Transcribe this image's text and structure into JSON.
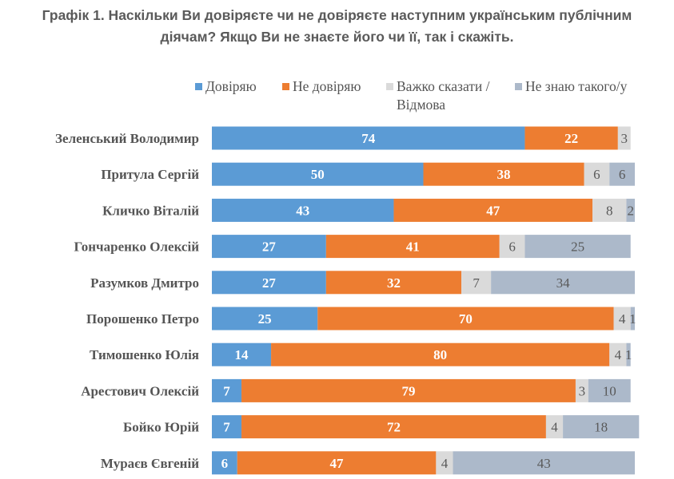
{
  "title_line1": "Графік 1. Наскільки Ви довіряєте чи не довіряєте наступним українським публічним",
  "title_line2": "діячам? Якщо Ви не знаєте його чи її, так і скажіть.",
  "chart_data": {
    "type": "bar",
    "orientation": "horizontal",
    "stacked": true,
    "title": "Графік 1. Наскільки Ви довіряєте чи не довіряєте наступним українським публічним діячам? Якщо Ви не знаєте його чи її, так і скажіть.",
    "xlabel": "",
    "ylabel": "",
    "xlim": [
      0,
      100
    ],
    "grid": false,
    "legend_position": "top",
    "categories": [
      "Зеленський Володимир",
      "Притула Сергій",
      "Кличко Віталій",
      "Гончаренко Олексій",
      "Разумков Дмитро",
      "Порошенко Петро",
      "Тимошенко Юлія",
      "Арестович Олексій",
      "Бойко Юрій",
      "Мураєв Євгеній"
    ],
    "series": [
      {
        "name": "Довіряю",
        "color": "#5b9bd5",
        "label_color": "#ffffff",
        "values": [
          74,
          50,
          43,
          27,
          27,
          25,
          14,
          7,
          7,
          6
        ]
      },
      {
        "name": "Не довіряю",
        "color": "#ed7d31",
        "label_color": "#ffffff",
        "values": [
          22,
          38,
          47,
          41,
          32,
          70,
          80,
          79,
          72,
          47
        ]
      },
      {
        "name": "Важко сказати / Відмова",
        "color": "#dadada",
        "label_color": "#595959",
        "values": [
          3,
          6,
          8,
          6,
          7,
          4,
          4,
          3,
          4,
          4
        ]
      },
      {
        "name": "Не знаю такого/у",
        "color": "#acb9ca",
        "label_color": "#595959",
        "values": [
          0,
          6,
          2,
          25,
          34,
          1,
          1,
          10,
          18,
          43
        ]
      }
    ],
    "data_labels": [
      [
        "74",
        "22",
        "3",
        ""
      ],
      [
        "50",
        "38",
        "6",
        "6"
      ],
      [
        "43",
        "47",
        "8",
        "2"
      ],
      [
        "27",
        "41",
        "6",
        "25"
      ],
      [
        "27",
        "32",
        "7",
        "34"
      ],
      [
        "25",
        "70",
        "4",
        "1"
      ],
      [
        "14",
        "80",
        "4",
        "1"
      ],
      [
        "7",
        "79",
        "3",
        "10"
      ],
      [
        "7",
        "72",
        "4",
        "18"
      ],
      [
        "6",
        "47",
        "4",
        "43"
      ]
    ]
  },
  "legend": [
    {
      "label_line1": "Довіряю",
      "label_line2": "",
      "color": "#5b9bd5"
    },
    {
      "label_line1": "Не довіряю",
      "label_line2": "",
      "color": "#ed7d31"
    },
    {
      "label_line1": "Важко сказати /",
      "label_line2": "Відмова",
      "color": "#dadada"
    },
    {
      "label_line1": "Не знаю такого/у",
      "label_line2": "",
      "color": "#acb9ca"
    }
  ]
}
